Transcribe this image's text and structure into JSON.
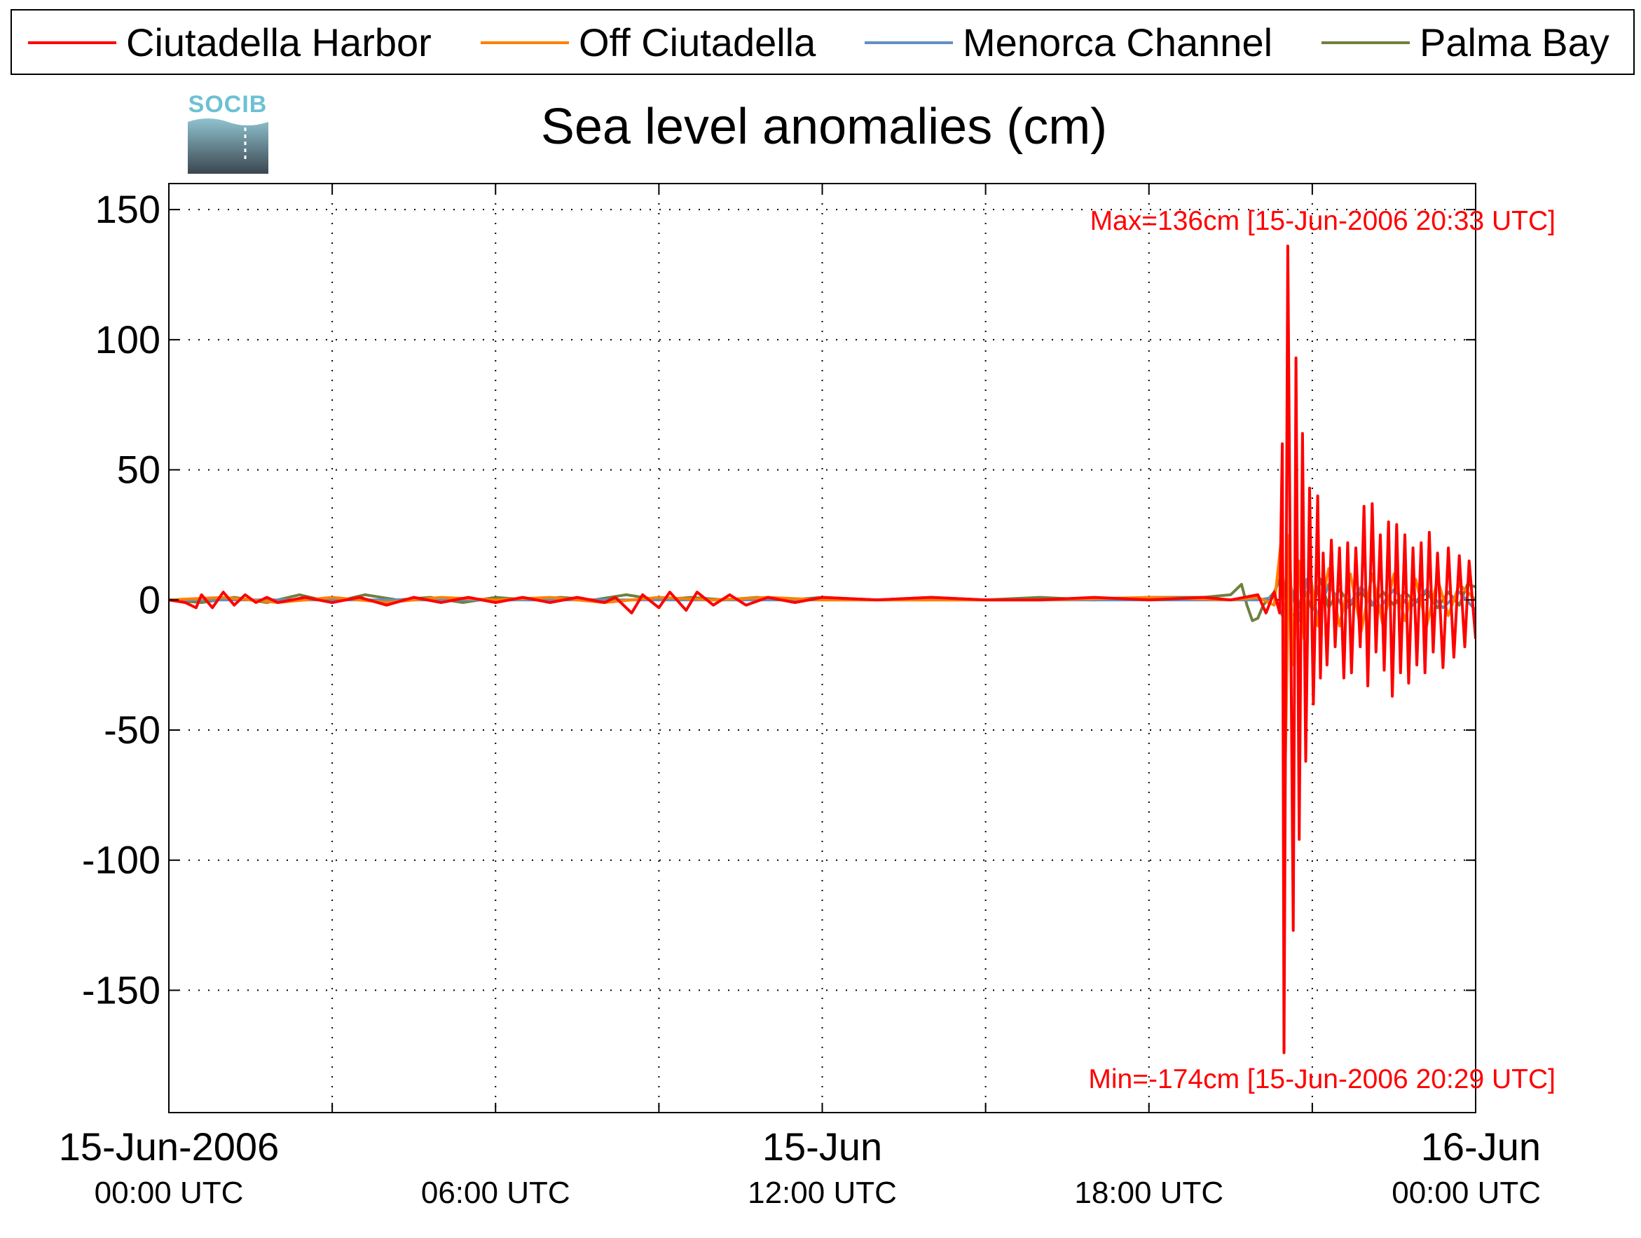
{
  "chart_data": {
    "type": "line",
    "title": "Sea level anomalies (cm)",
    "logo_text": "SOCIB",
    "ylim": [
      -197,
      160
    ],
    "yticks": [
      150,
      100,
      50,
      0,
      -50,
      -100,
      -150
    ],
    "ytick_labels": [
      "150",
      "100",
      "50",
      "0",
      "-50",
      "-100",
      "-150"
    ],
    "xlim_hours": [
      0,
      24
    ],
    "xtick_labels": [
      {
        "hour": 0,
        "date": "15-Jun-2006",
        "time": "00:00 UTC"
      },
      {
        "hour": 6,
        "date": "",
        "time": "06:00 UTC"
      },
      {
        "hour": 12,
        "date": "15-Jun",
        "time": "12:00 UTC"
      },
      {
        "hour": 18,
        "date": "",
        "time": "18:00 UTC"
      },
      {
        "hour": 24,
        "date": "16-Jun",
        "time": "00:00 UTC"
      }
    ],
    "grid": true,
    "legend_position": "top",
    "annotations": {
      "max": "Max=136cm [15-Jun-2006 20:33 UTC]",
      "min": "Min=-174cm [15-Jun-2006 20:29 UTC]"
    },
    "series": [
      {
        "name": "Ciutadella Harbor",
        "color": "#ff0000",
        "points": [
          [
            0.0,
            0
          ],
          [
            0.3,
            -1
          ],
          [
            0.5,
            -3
          ],
          [
            0.6,
            2
          ],
          [
            0.8,
            -3
          ],
          [
            1.0,
            3
          ],
          [
            1.2,
            -2
          ],
          [
            1.4,
            2
          ],
          [
            1.6,
            -1
          ],
          [
            1.8,
            1
          ],
          [
            2.0,
            -1
          ],
          [
            2.5,
            1
          ],
          [
            3.0,
            -1
          ],
          [
            3.5,
            1
          ],
          [
            4.0,
            -2
          ],
          [
            4.5,
            1
          ],
          [
            5.0,
            -1
          ],
          [
            5.5,
            1
          ],
          [
            6.0,
            -1
          ],
          [
            6.5,
            1
          ],
          [
            7.0,
            -1
          ],
          [
            7.5,
            1
          ],
          [
            8.0,
            -1
          ],
          [
            8.2,
            1
          ],
          [
            8.5,
            -5
          ],
          [
            8.7,
            2
          ],
          [
            9.0,
            -3
          ],
          [
            9.2,
            3
          ],
          [
            9.5,
            -4
          ],
          [
            9.7,
            3
          ],
          [
            10.0,
            -2
          ],
          [
            10.3,
            2
          ],
          [
            10.6,
            -2
          ],
          [
            11.0,
            1
          ],
          [
            11.5,
            -1
          ],
          [
            12.0,
            1
          ],
          [
            13.0,
            0
          ],
          [
            14.0,
            1
          ],
          [
            15.0,
            0
          ],
          [
            16.0,
            0
          ],
          [
            17.0,
            1
          ],
          [
            18.0,
            0
          ],
          [
            19.0,
            1
          ],
          [
            19.5,
            0
          ],
          [
            20.0,
            2
          ],
          [
            20.15,
            -5
          ],
          [
            20.3,
            3
          ],
          [
            20.4,
            -5
          ],
          [
            20.45,
            60
          ],
          [
            20.48,
            -174
          ],
          [
            20.55,
            136
          ],
          [
            20.6,
            0
          ],
          [
            20.65,
            -127
          ],
          [
            20.7,
            93
          ],
          [
            20.76,
            -92
          ],
          [
            20.82,
            64
          ],
          [
            20.88,
            -62
          ],
          [
            20.95,
            43
          ],
          [
            21.02,
            -40
          ],
          [
            21.1,
            40
          ],
          [
            21.15,
            -30
          ],
          [
            21.2,
            18
          ],
          [
            21.27,
            -25
          ],
          [
            21.35,
            23
          ],
          [
            21.42,
            -18
          ],
          [
            21.5,
            20
          ],
          [
            21.58,
            -30
          ],
          [
            21.65,
            22
          ],
          [
            21.72,
            -28
          ],
          [
            21.8,
            20
          ],
          [
            21.88,
            -18
          ],
          [
            21.95,
            36
          ],
          [
            22.02,
            -33
          ],
          [
            22.1,
            37
          ],
          [
            22.17,
            -20
          ],
          [
            22.25,
            25
          ],
          [
            22.32,
            -27
          ],
          [
            22.4,
            30
          ],
          [
            22.47,
            -37
          ],
          [
            22.55,
            29
          ],
          [
            22.62,
            -28
          ],
          [
            22.7,
            25
          ],
          [
            22.77,
            -32
          ],
          [
            22.85,
            20
          ],
          [
            22.92,
            -25
          ],
          [
            23.0,
            22
          ],
          [
            23.07,
            -28
          ],
          [
            23.15,
            26
          ],
          [
            23.22,
            -20
          ],
          [
            23.3,
            18
          ],
          [
            23.4,
            -26
          ],
          [
            23.5,
            20
          ],
          [
            23.6,
            -22
          ],
          [
            23.7,
            17
          ],
          [
            23.8,
            -18
          ],
          [
            23.88,
            15
          ],
          [
            24.0,
            -15
          ]
        ]
      },
      {
        "name": "Off Ciutadella",
        "color": "#ff8000",
        "points": [
          [
            0.0,
            0
          ],
          [
            1.0,
            1
          ],
          [
            2.0,
            -1
          ],
          [
            3.0,
            1
          ],
          [
            4.0,
            -1
          ],
          [
            5.0,
            1
          ],
          [
            6.0,
            0
          ],
          [
            7.0,
            1
          ],
          [
            8.0,
            -1
          ],
          [
            9.0,
            1
          ],
          [
            10.0,
            0
          ],
          [
            11.0,
            1
          ],
          [
            12.0,
            0
          ],
          [
            14.0,
            0
          ],
          [
            16.0,
            0
          ],
          [
            18.0,
            1
          ],
          [
            19.5,
            0
          ],
          [
            20.0,
            1
          ],
          [
            20.3,
            -2
          ],
          [
            20.45,
            27
          ],
          [
            20.5,
            -68
          ],
          [
            20.58,
            25
          ],
          [
            20.65,
            -25
          ],
          [
            20.75,
            15
          ],
          [
            20.85,
            -15
          ],
          [
            20.95,
            12
          ],
          [
            21.1,
            -10
          ],
          [
            21.3,
            12
          ],
          [
            21.5,
            -10
          ],
          [
            21.7,
            10
          ],
          [
            21.9,
            -12
          ],
          [
            22.1,
            10
          ],
          [
            22.3,
            -10
          ],
          [
            22.5,
            10
          ],
          [
            22.7,
            -8
          ],
          [
            22.9,
            8
          ],
          [
            23.1,
            -10
          ],
          [
            23.3,
            8
          ],
          [
            23.5,
            -6
          ],
          [
            23.7,
            6
          ],
          [
            24.0,
            0
          ]
        ]
      },
      {
        "name": "Menorca Channel",
        "color": "#6090c0",
        "points": [
          [
            0.0,
            0
          ],
          [
            2.0,
            0
          ],
          [
            4.0,
            0
          ],
          [
            6.0,
            0
          ],
          [
            8.0,
            0
          ],
          [
            10.0,
            0
          ],
          [
            12.0,
            0
          ],
          [
            14.0,
            0
          ],
          [
            16.0,
            0
          ],
          [
            18.0,
            0
          ],
          [
            20.0,
            0
          ],
          [
            20.3,
            1
          ],
          [
            20.45,
            -6
          ],
          [
            20.6,
            6
          ],
          [
            20.75,
            -8
          ],
          [
            20.9,
            8
          ],
          [
            21.1,
            -6
          ],
          [
            21.3,
            6
          ],
          [
            21.6,
            -4
          ],
          [
            21.9,
            5
          ],
          [
            22.2,
            -4
          ],
          [
            22.5,
            4
          ],
          [
            22.8,
            -3
          ],
          [
            23.1,
            4
          ],
          [
            23.4,
            -3
          ],
          [
            23.7,
            3
          ],
          [
            24.0,
            -4
          ]
        ]
      },
      {
        "name": "Palma Bay",
        "color": "#708040",
        "points": [
          [
            0.0,
            0
          ],
          [
            0.6,
            -1
          ],
          [
            1.2,
            1
          ],
          [
            1.8,
            -1
          ],
          [
            2.4,
            2
          ],
          [
            3.0,
            -1
          ],
          [
            3.6,
            2
          ],
          [
            4.2,
            0
          ],
          [
            4.8,
            1
          ],
          [
            5.4,
            -1
          ],
          [
            6.0,
            1
          ],
          [
            6.6,
            0
          ],
          [
            7.2,
            1
          ],
          [
            7.8,
            0
          ],
          [
            8.4,
            2
          ],
          [
            9.0,
            0
          ],
          [
            9.6,
            1
          ],
          [
            10.2,
            0
          ],
          [
            10.8,
            1
          ],
          [
            11.4,
            0
          ],
          [
            12.0,
            1
          ],
          [
            13.0,
            0
          ],
          [
            14.0,
            1
          ],
          [
            15.0,
            0
          ],
          [
            16.0,
            1
          ],
          [
            17.0,
            0
          ],
          [
            18.0,
            1
          ],
          [
            19.0,
            1
          ],
          [
            19.5,
            2
          ],
          [
            19.7,
            6
          ],
          [
            19.8,
            -2
          ],
          [
            19.9,
            -8
          ],
          [
            20.0,
            -7
          ],
          [
            20.1,
            -2
          ],
          [
            20.3,
            3
          ],
          [
            20.45,
            10
          ],
          [
            20.55,
            -5
          ],
          [
            20.7,
            -6
          ],
          [
            20.85,
            4
          ],
          [
            21.0,
            -4
          ],
          [
            21.15,
            8
          ],
          [
            21.3,
            -3
          ],
          [
            21.5,
            4
          ],
          [
            21.7,
            -2
          ],
          [
            21.9,
            3
          ],
          [
            22.1,
            -2
          ],
          [
            22.3,
            3
          ],
          [
            22.5,
            -2
          ],
          [
            22.7,
            3
          ],
          [
            22.9,
            -1
          ],
          [
            23.1,
            3
          ],
          [
            23.3,
            -3
          ],
          [
            23.5,
            3
          ],
          [
            23.7,
            -2
          ],
          [
            23.85,
            6
          ],
          [
            24.0,
            5
          ]
        ]
      }
    ]
  }
}
